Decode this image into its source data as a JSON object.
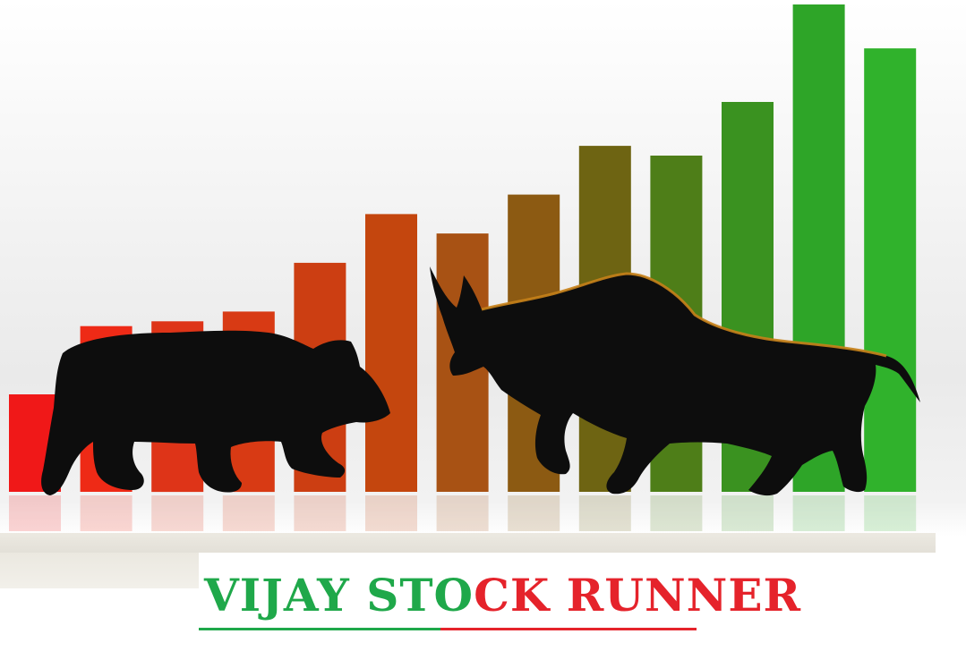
{
  "logo": {
    "brand_green": "VIJAY STO",
    "brand_red": "CK RUNNER",
    "colors": {
      "green": "#1fa84a",
      "red": "#e5232b"
    }
  },
  "illustration": {
    "bars": [
      {
        "level": 0.2,
        "color": "#f01818"
      },
      {
        "level": 0.34,
        "color": "#ee2a16"
      },
      {
        "level": 0.35,
        "color": "#de3418"
      },
      {
        "level": 0.37,
        "color": "#d83a14"
      },
      {
        "level": 0.47,
        "color": "#cc3e12"
      },
      {
        "level": 0.57,
        "color": "#c4460e"
      },
      {
        "level": 0.53,
        "color": "#a85214"
      },
      {
        "level": 0.61,
        "color": "#8c5a12"
      },
      {
        "level": 0.71,
        "color": "#6e6412"
      },
      {
        "level": 0.69,
        "color": "#4e7e18"
      },
      {
        "level": 0.8,
        "color": "#3a9220"
      },
      {
        "level": 1.0,
        "color": "#2ea528"
      },
      {
        "level": 0.91,
        "color": "#30b22c"
      }
    ],
    "icons": [
      "bear-silhouette-icon",
      "bull-silhouette-icon"
    ]
  }
}
